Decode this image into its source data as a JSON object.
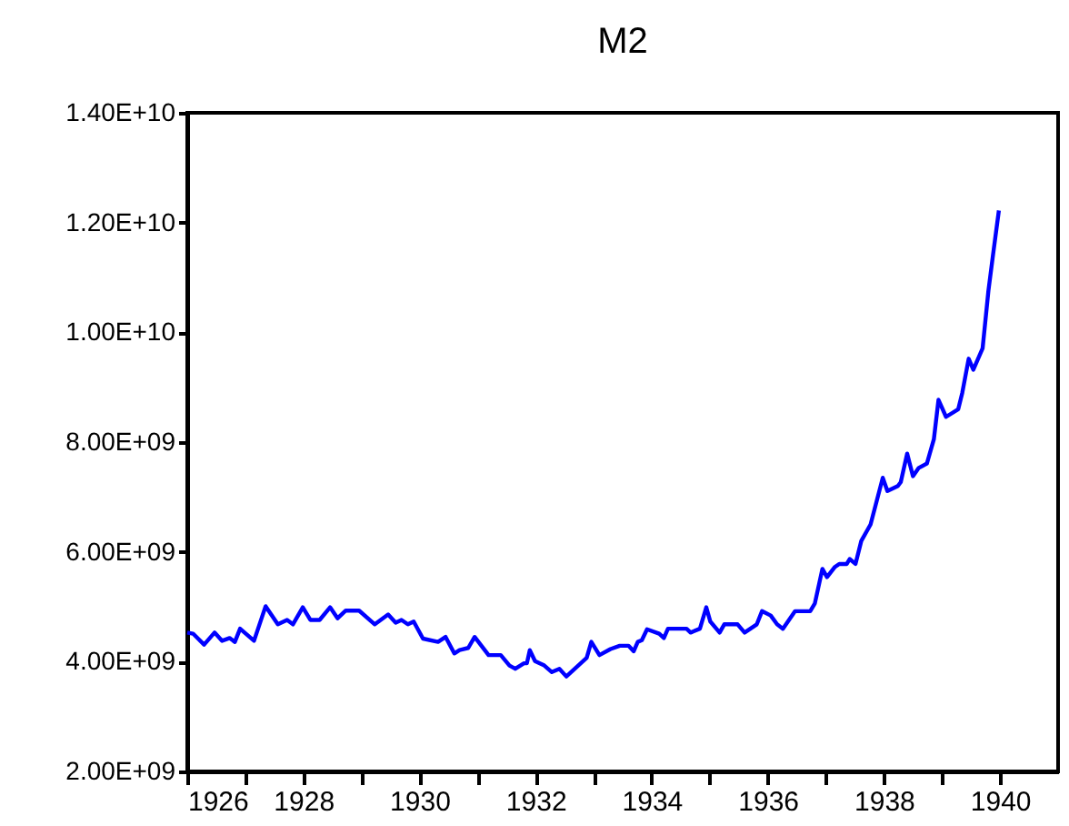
{
  "chart_data": {
    "type": "line",
    "title": "M2",
    "x": [
      1926.0,
      1926.1,
      1926.29,
      1926.47,
      1926.6,
      1926.73,
      1926.82,
      1926.91,
      1927.15,
      1927.35,
      1927.56,
      1927.72,
      1927.82,
      1927.99,
      1928.12,
      1928.28,
      1928.46,
      1928.59,
      1928.73,
      1928.96,
      1929.23,
      1929.46,
      1929.59,
      1929.69,
      1929.8,
      1929.9,
      1930.06,
      1930.32,
      1930.45,
      1930.6,
      1930.69,
      1930.84,
      1930.95,
      1931.19,
      1931.4,
      1931.55,
      1931.65,
      1931.8,
      1931.85,
      1931.9,
      1931.99,
      1932.15,
      1932.28,
      1932.41,
      1932.53,
      1932.88,
      1932.96,
      1933.1,
      1933.29,
      1933.45,
      1933.6,
      1933.69,
      1933.76,
      1933.83,
      1933.92,
      1934.13,
      1934.21,
      1934.28,
      1934.6,
      1934.67,
      1934.83,
      1934.94,
      1935.01,
      1935.17,
      1935.25,
      1935.48,
      1935.6,
      1935.81,
      1935.9,
      1936.05,
      1936.16,
      1936.26,
      1936.47,
      1936.73,
      1936.81,
      1936.94,
      1937.02,
      1937.15,
      1937.23,
      1937.36,
      1937.41,
      1937.51,
      1937.61,
      1937.77,
      1937.98,
      1938.06,
      1938.24,
      1938.29,
      1938.4,
      1938.5,
      1938.6,
      1938.74,
      1938.86,
      1938.94,
      1939.07,
      1939.28,
      1939.35,
      1939.46,
      1939.54,
      1939.7,
      1939.8,
      1939.88,
      1939.98
    ],
    "values": [
      4530000000.0,
      4510000000.0,
      4310000000.0,
      4530000000.0,
      4380000000.0,
      4430000000.0,
      4360000000.0,
      4600000000.0,
      4380000000.0,
      5010000000.0,
      4680000000.0,
      4760000000.0,
      4680000000.0,
      4990000000.0,
      4760000000.0,
      4760000000.0,
      4990000000.0,
      4790000000.0,
      4930000000.0,
      4930000000.0,
      4680000000.0,
      4860000000.0,
      4710000000.0,
      4760000000.0,
      4680000000.0,
      4730000000.0,
      4420000000.0,
      4360000000.0,
      4450000000.0,
      4150000000.0,
      4210000000.0,
      4250000000.0,
      4450000000.0,
      4120000000.0,
      4120000000.0,
      3930000000.0,
      3870000000.0,
      3970000000.0,
      3970000000.0,
      4210000000.0,
      4010000000.0,
      3930000000.0,
      3810000000.0,
      3870000000.0,
      3730000000.0,
      4070000000.0,
      4360000000.0,
      4120000000.0,
      4230000000.0,
      4290000000.0,
      4290000000.0,
      4190000000.0,
      4360000000.0,
      4390000000.0,
      4590000000.0,
      4510000000.0,
      4430000000.0,
      4600000000.0,
      4600000000.0,
      4530000000.0,
      4600000000.0,
      4990000000.0,
      4730000000.0,
      4530000000.0,
      4680000000.0,
      4680000000.0,
      4530000000.0,
      4680000000.0,
      4920000000.0,
      4840000000.0,
      4680000000.0,
      4600000000.0,
      4920000000.0,
      4920000000.0,
      5060000000.0,
      5690000000.0,
      5540000000.0,
      5720000000.0,
      5780000000.0,
      5780000000.0,
      5870000000.0,
      5780000000.0,
      6200000000.0,
      6500000000.0,
      7350000000.0,
      7110000000.0,
      7200000000.0,
      7270000000.0,
      7790000000.0,
      7380000000.0,
      7530000000.0,
      7610000000.0,
      8050000000.0,
      8770000000.0,
      8460000000.0,
      8600000000.0,
      8900000000.0,
      9520000000.0,
      9320000000.0,
      9710000000.0,
      10760000000.0,
      11420000000.0,
      12220000000.0
    ],
    "color": "#0000ff",
    "xlim": [
      1926,
      1941
    ],
    "xticks": [
      1926,
      {
        "value": 1927,
        "label": null
      },
      1928,
      {
        "value": 1929,
        "label": null
      },
      1930,
      {
        "value": 1931,
        "label": null
      },
      1932,
      {
        "value": 1933,
        "label": null
      },
      1934,
      {
        "value": 1935,
        "label": null
      },
      1936,
      {
        "value": 1937,
        "label": null
      },
      1938,
      {
        "value": 1939,
        "label": null
      },
      1940
    ],
    "ylim": [
      2000000000.0,
      14000000000.0
    ],
    "yticks": [
      {
        "value": 2000000000.0,
        "label": "2.00E+09"
      },
      {
        "value": 4000000000.0,
        "label": "4.00E+09"
      },
      {
        "value": 6000000000.0,
        "label": "6.00E+09"
      },
      {
        "value": 8000000000.0,
        "label": "8.00E+09"
      },
      {
        "value": 10000000000.0,
        "label": "1.00E+10"
      },
      {
        "value": 12000000000.0,
        "label": "1.20E+10"
      },
      {
        "value": 14000000000.0,
        "label": "1.40E+10"
      }
    ],
    "grid": false,
    "marker": "none",
    "line_style": "solid"
  }
}
